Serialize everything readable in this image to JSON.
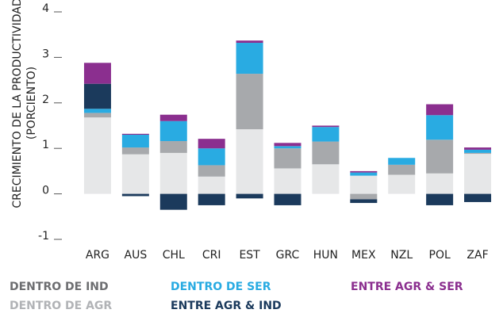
{
  "chart_data": {
    "type": "stacked_bar",
    "y_label": [
      "CRECIMIENTO DE LA PRODUCTIVIDAD",
      "(PORCIENTO)"
    ],
    "categories": [
      "ARG",
      "AUS",
      "CHL",
      "CRI",
      "EST",
      "GRC",
      "HUN",
      "MEX",
      "NZL",
      "POL",
      "ZAF"
    ],
    "series": [
      {
        "name": "DENTRO DE IND",
        "color": "#e6e7e8",
        "label_color": "#6d6e71",
        "values": [
          1.68,
          0.87,
          0.9,
          0.38,
          1.42,
          0.56,
          0.65,
          0.4,
          0.42,
          0.45,
          0.88
        ]
      },
      {
        "name": "DENTRO DE AGR",
        "color": "#a7a9ac",
        "label_color": "#b1b3b6",
        "values": [
          0.1,
          0.15,
          0.26,
          0.25,
          1.22,
          0.44,
          0.5,
          -0.12,
          0.22,
          0.74,
          0.02
        ]
      },
      {
        "name": "DENTRO DE SER",
        "color": "#29abe2",
        "label_color": "#29abe2",
        "values": [
          0.09,
          0.28,
          0.44,
          0.37,
          0.68,
          0.05,
          0.32,
          0.07,
          0.15,
          0.54,
          0.07
        ]
      },
      {
        "name": "ENTRE AGR & IND",
        "color": "#1b3a5c",
        "label_color": "#1b3a5c",
        "values": [
          0.55,
          -0.05,
          -0.35,
          -0.25,
          -0.1,
          -0.25,
          0,
          -0.08,
          0,
          -0.25,
          -0.18
        ]
      },
      {
        "name": "ENTRE AGR & SER",
        "color": "#8b2f8f",
        "label_color": "#8b2f8f",
        "values": [
          0.46,
          0.02,
          0.14,
          0.21,
          0.05,
          0.07,
          0.03,
          0.03,
          0,
          0.24,
          0.05
        ]
      }
    ],
    "ylim": [
      -1,
      4
    ],
    "yticks": [
      -1,
      0,
      1,
      2,
      3,
      4
    ]
  }
}
